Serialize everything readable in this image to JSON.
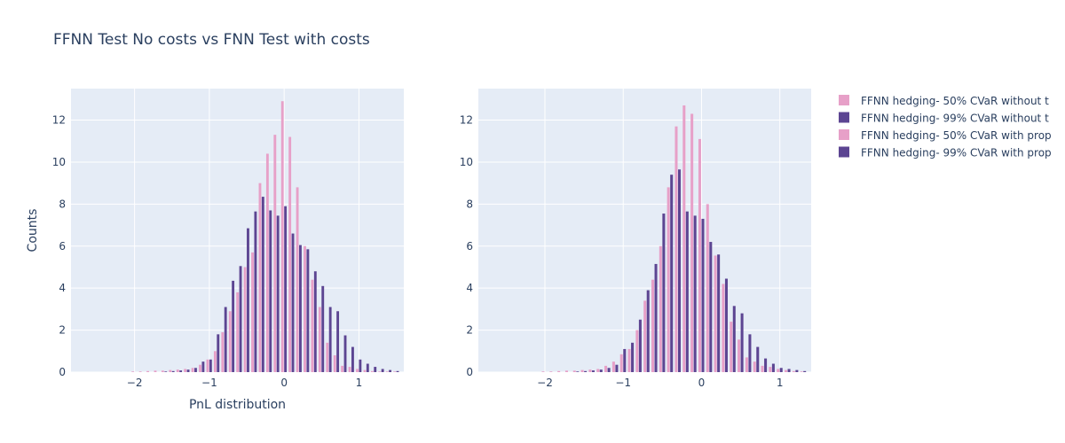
{
  "chart_data": {
    "type": "bar",
    "title": "FFNN Test No costs vs FNN Test with costs",
    "xlabel": "PnL distribution",
    "ylabel": "Counts",
    "colors": {
      "pink": "#e7a0c8",
      "purple": "#5c4592"
    },
    "legend": [
      {
        "label": "FFNN hedging- 50% CVaR without t",
        "color": "#e7a0c8"
      },
      {
        "label": "FFNN hedging- 99% CVaR without t",
        "color": "#5c4592"
      },
      {
        "label": "FFNN hedging- 50% CVaR with prop",
        "color": "#e7a0c8"
      },
      {
        "label": "FFNN hedging- 99% CVaR with prop",
        "color": "#5c4592"
      }
    ],
    "panels": [
      {
        "name": "no-costs",
        "xlim": [
          -2.85,
          1.6
        ],
        "ylim": [
          0,
          13.5
        ],
        "xticks": [
          -2,
          -1,
          0,
          1
        ],
        "xtick_labels": [
          "−2",
          "−1",
          "0",
          "1"
        ],
        "yticks": [
          0,
          2,
          4,
          6,
          8,
          10,
          12
        ],
        "ytick_labels": [
          "0",
          "2",
          "4",
          "6",
          "8",
          "10",
          "12"
        ],
        "bin_centers": [
          -2.0,
          -1.9,
          -1.8,
          -1.7,
          -1.6,
          -1.5,
          -1.4,
          -1.3,
          -1.2,
          -1.1,
          -1.0,
          -0.9,
          -0.8,
          -0.7,
          -0.6,
          -0.5,
          -0.4,
          -0.3,
          -0.2,
          -0.1,
          0.0,
          0.1,
          0.2,
          0.3,
          0.4,
          0.5,
          0.6,
          0.7,
          0.8,
          0.9,
          1.0,
          1.1,
          1.2,
          1.3,
          1.4,
          1.5
        ],
        "series": [
          {
            "name": "FFNN hedging- 50% CVaR without t",
            "color": "#e7a0c8",
            "values": [
              0.03,
              0.03,
              0.05,
              0.07,
              0.07,
              0.1,
              0.12,
              0.15,
              0.2,
              0.35,
              0.6,
              1.0,
              1.9,
              2.9,
              3.8,
              5.0,
              5.7,
              9.0,
              10.4,
              11.3,
              12.9,
              11.2,
              8.8,
              6.0,
              4.4,
              3.1,
              1.4,
              0.8,
              0.3,
              0.25,
              0.15,
              0.1,
              0.05,
              0.03,
              0.03,
              0.03
            ]
          },
          {
            "name": "FFNN hedging- 99% CVaR without t",
            "color": "#5c4592",
            "values": [
              0,
              0,
              0,
              0,
              0.03,
              0.05,
              0.08,
              0.12,
              0.2,
              0.5,
              0.6,
              1.8,
              3.1,
              4.35,
              5.05,
              6.85,
              7.65,
              8.35,
              7.7,
              7.45,
              7.9,
              6.6,
              6.05,
              5.85,
              4.8,
              4.1,
              3.1,
              2.9,
              1.75,
              1.2,
              0.6,
              0.4,
              0.25,
              0.15,
              0.1,
              0.05
            ]
          }
        ]
      },
      {
        "name": "with-costs",
        "xlim": [
          -2.85,
          1.4
        ],
        "ylim": [
          0,
          13.5
        ],
        "xticks": [
          -2,
          -1,
          0,
          1
        ],
        "xtick_labels": [
          "−2",
          "−1",
          "0",
          "1"
        ],
        "yticks": [
          0,
          2,
          4,
          6,
          8,
          10,
          12
        ],
        "ytick_labels": [
          "0",
          "2",
          "4",
          "6",
          "8",
          "10",
          "12"
        ],
        "bin_centers": [
          -2.0,
          -1.9,
          -1.8,
          -1.7,
          -1.6,
          -1.5,
          -1.4,
          -1.3,
          -1.2,
          -1.1,
          -1.0,
          -0.9,
          -0.8,
          -0.7,
          -0.6,
          -0.5,
          -0.4,
          -0.3,
          -0.2,
          -0.1,
          0.0,
          0.1,
          0.2,
          0.3,
          0.4,
          0.5,
          0.6,
          0.7,
          0.8,
          0.9,
          1.0,
          1.1,
          1.2,
          1.3
        ],
        "series": [
          {
            "name": "FFNN hedging- 50% CVaR with prop",
            "color": "#e7a0c8",
            "values": [
              0.03,
              0.03,
              0.05,
              0.07,
              0.07,
              0.1,
              0.12,
              0.15,
              0.3,
              0.5,
              0.85,
              1.1,
              2.0,
              3.4,
              4.4,
              6.0,
              8.8,
              11.7,
              12.7,
              12.3,
              11.1,
              8.0,
              5.55,
              4.2,
              2.4,
              1.55,
              0.7,
              0.5,
              0.3,
              0.25,
              0.15,
              0.1,
              0.05,
              0.03
            ]
          },
          {
            "name": "FFNN hedging- 99% CVaR with prop",
            "color": "#5c4592",
            "values": [
              0,
              0,
              0,
              0,
              0.03,
              0.05,
              0.08,
              0.12,
              0.2,
              0.35,
              1.1,
              1.4,
              2.5,
              3.9,
              5.15,
              7.55,
              9.4,
              9.65,
              7.65,
              7.45,
              7.3,
              6.2,
              5.6,
              4.45,
              3.15,
              2.8,
              1.8,
              1.2,
              0.65,
              0.4,
              0.2,
              0.15,
              0.1,
              0.05
            ]
          }
        ]
      }
    ]
  }
}
